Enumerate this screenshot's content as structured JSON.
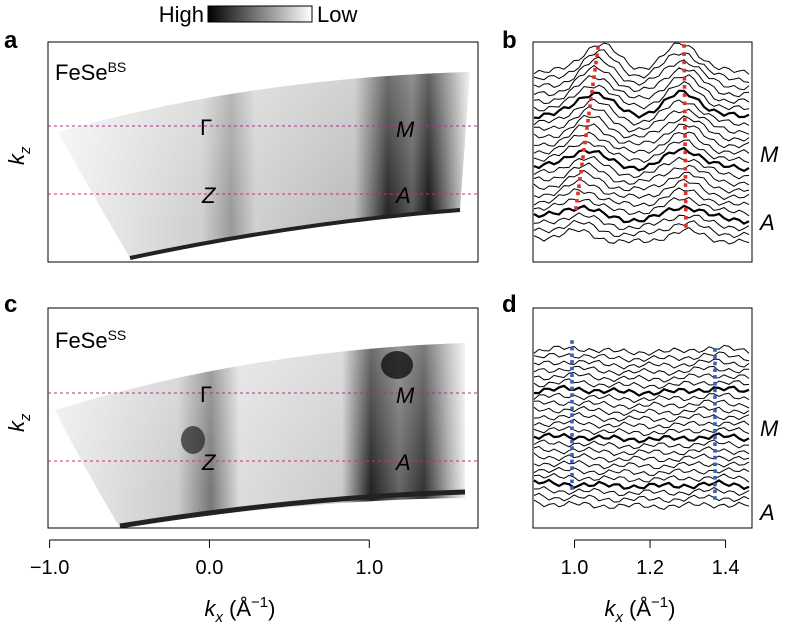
{
  "colorbar": {
    "high": "High",
    "low": "Low"
  },
  "panels": [
    {
      "letter": "a",
      "sample": "FeSe",
      "sample_sup": "BS",
      "y_label": "k",
      "y_label_sub": "z",
      "points": [
        "Γ",
        "M",
        "Z",
        "A"
      ]
    },
    {
      "letter": "b",
      "points": [
        "M",
        "A"
      ]
    },
    {
      "letter": "c",
      "sample": "FeSe",
      "sample_sup": "SS",
      "y_label": "k",
      "y_label_sub": "z",
      "points": [
        "Γ",
        "M",
        "Z",
        "A"
      ]
    },
    {
      "letter": "d",
      "points": [
        "M",
        "A"
      ]
    }
  ],
  "x_axes": [
    {
      "label": "k",
      "sub": "x",
      "unit_open": "(Å",
      "unit_exp": "−1",
      "unit_close": ")",
      "xlim": [
        -1.01,
        1.68
      ],
      "xticks": [
        {
          "value": -1,
          "label": "−1.0"
        },
        {
          "value": 0,
          "label": "0.0"
        },
        {
          "value": 1,
          "label": "1.0"
        }
      ]
    },
    {
      "label": "k",
      "sub": "x",
      "unit_open": "(Å",
      "unit_exp": "−1",
      "unit_close": ")",
      "xlim": [
        0.89,
        1.47
      ],
      "xticks": [
        {
          "value": 1,
          "label": "1.0"
        },
        {
          "value": 1.2,
          "label": "1.2"
        },
        {
          "value": 1.4,
          "label": "1.4"
        }
      ]
    }
  ]
}
